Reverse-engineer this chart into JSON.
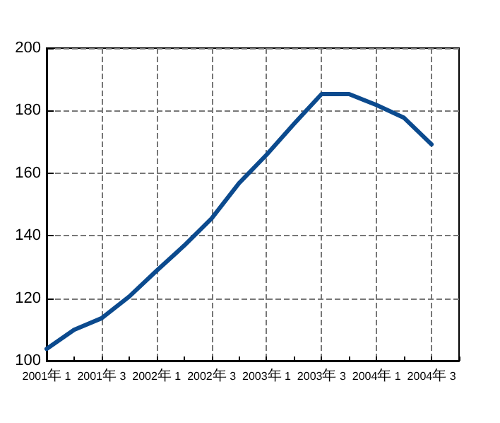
{
  "chart_data": {
    "type": "line",
    "categories": [
      "2001年 1",
      null,
      "2001年 3",
      null,
      "2002年 1",
      null,
      "2002年 3",
      null,
      "2003年 1",
      null,
      "2003年 3",
      null,
      "2004年 1",
      null,
      "2004年 3",
      null
    ],
    "series": [
      {
        "color": "#0b4a8e",
        "values": [
          103.8,
          109.9,
          113.6,
          120.5,
          128.8,
          136.8,
          145.5,
          156.8,
          165.9,
          175.8,
          185.3,
          185.3,
          181.8,
          177.7,
          169.2,
          null
        ]
      }
    ],
    "ylim": [
      100,
      200
    ],
    "yticks": [
      100,
      120,
      140,
      160,
      180,
      200
    ],
    "grid": true,
    "marker": "none",
    "line_style": "solid"
  }
}
